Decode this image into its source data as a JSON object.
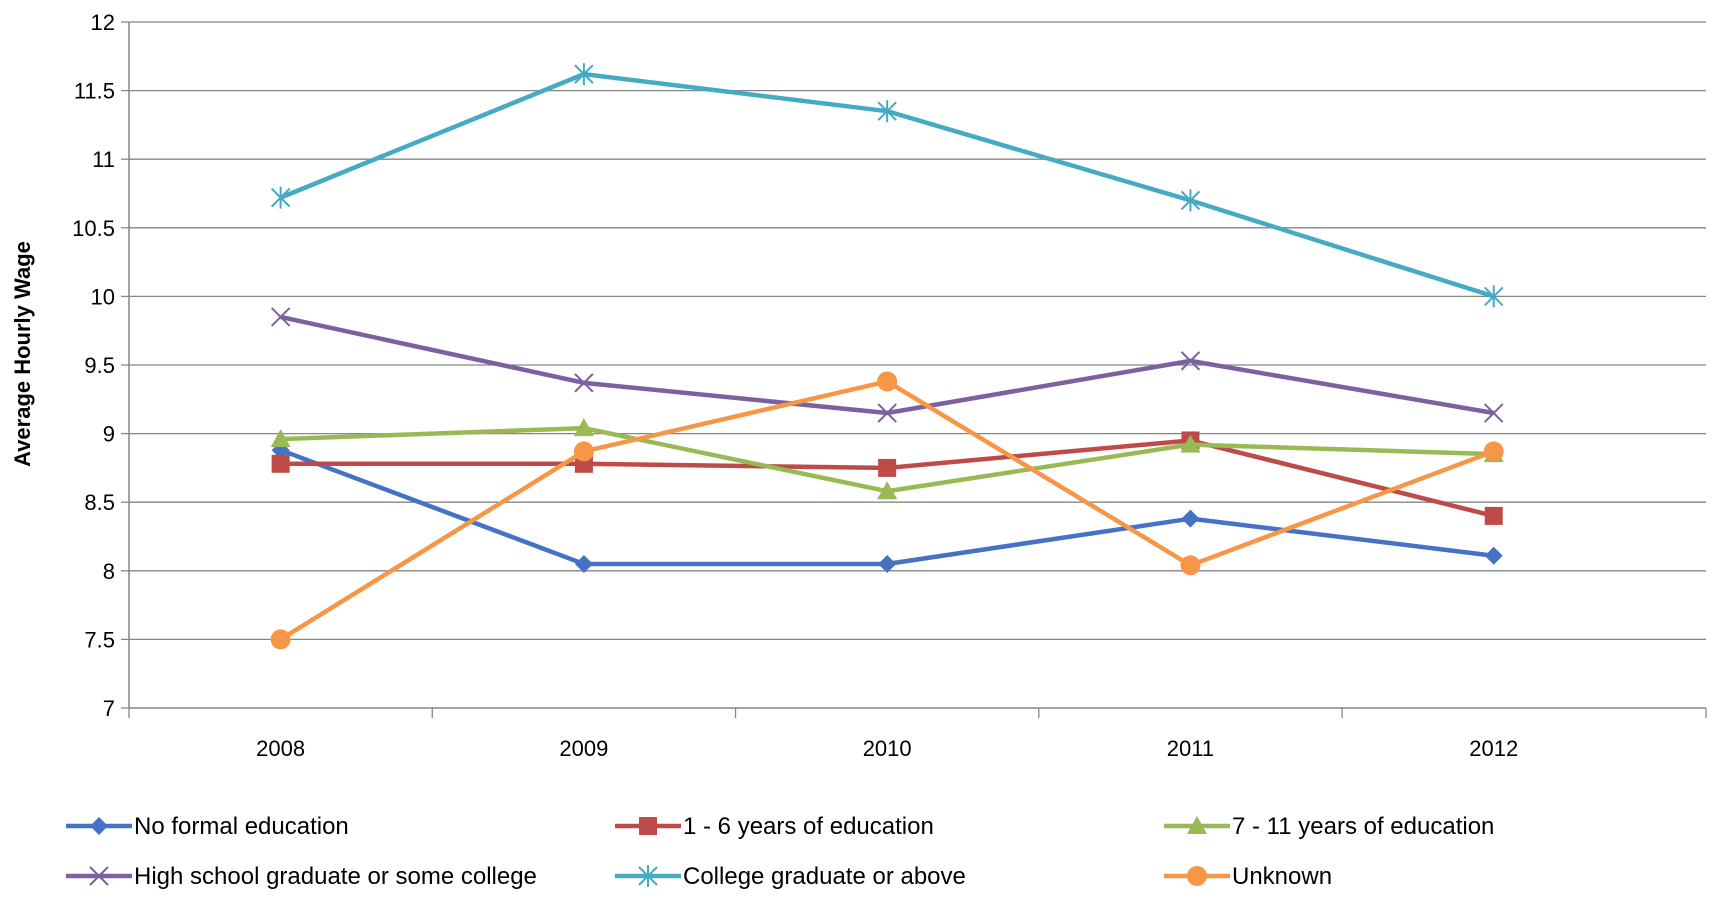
{
  "chart_data": {
    "type": "line",
    "title": "",
    "xlabel": "",
    "ylabel": "Average Hourly Wage",
    "categories": [
      "2008",
      "2009",
      "2010",
      "2011",
      "2012"
    ],
    "ylim": [
      7,
      12
    ],
    "yticks": [
      7,
      7.5,
      8,
      8.5,
      9,
      9.5,
      10,
      10.5,
      11,
      11.5,
      12
    ],
    "grid": "horizontal",
    "legend": "bottom",
    "series": [
      {
        "name": "No formal education",
        "marker": "diamond",
        "color": "#4472C4",
        "values": [
          8.88,
          8.05,
          8.05,
          8.38,
          8.11
        ]
      },
      {
        "name": "1 - 6 years of education",
        "marker": "square",
        "color": "#BE4B48",
        "values": [
          8.78,
          8.78,
          8.75,
          8.95,
          8.4
        ]
      },
      {
        "name": "7 - 11 years of education",
        "marker": "triangle",
        "color": "#98B954",
        "values": [
          8.96,
          9.04,
          8.58,
          8.92,
          8.85
        ]
      },
      {
        "name": "High school graduate or some college",
        "marker": "x",
        "color": "#7D60A0",
        "values": [
          9.85,
          9.37,
          9.15,
          9.53,
          9.15
        ]
      },
      {
        "name": "College graduate or above",
        "marker": "star",
        "color": "#46AAC5",
        "values": [
          10.72,
          11.62,
          11.35,
          10.7,
          10.0
        ]
      },
      {
        "name": "Unknown",
        "marker": "circle",
        "color": "#F79646",
        "values": [
          7.5,
          8.87,
          9.38,
          8.04,
          8.87
        ]
      }
    ]
  }
}
